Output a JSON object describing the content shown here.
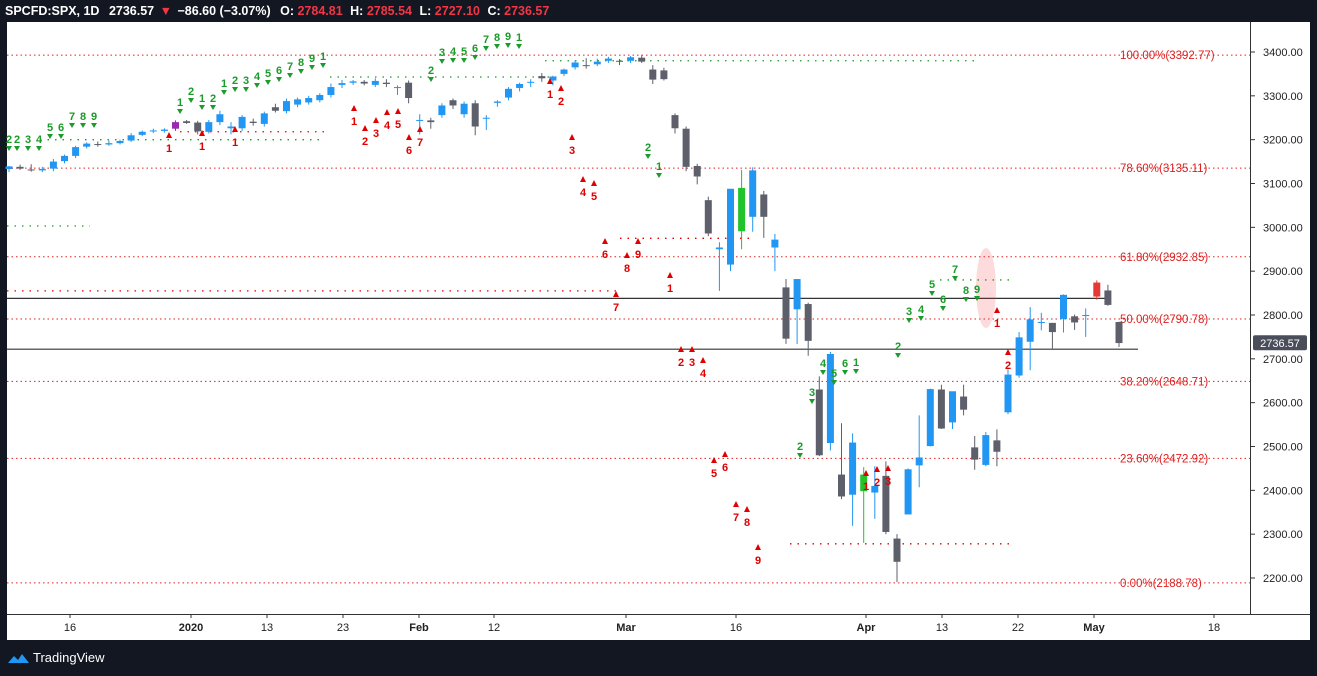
{
  "header": {
    "symbol": "SPCFD:SPX, 1D",
    "last": "2736.57",
    "arrow": "▼",
    "change": "−86.60 (−3.07%)",
    "o_label": "O:",
    "o_value": "2784.81",
    "h_label": "H:",
    "h_value": "2785.54",
    "l_label": "L:",
    "l_value": "2727.10",
    "c_label": "C:",
    "c_value": "2736.57"
  },
  "brand": {
    "name": "TradingView"
  },
  "price_tag": "2736.57",
  "colors": {
    "background": "#ffffff",
    "frame": "#131722",
    "up_candle": "#2196f3",
    "down_candle": "#5d606b",
    "green_candle": "#22c32b",
    "red_candle": "#e53935",
    "purple_candle": "#9c27b0",
    "td_green": "#1b9b2a",
    "td_red": "#e00000",
    "fib_line": "#e02020",
    "horizontal_line": "#333333",
    "loss_red": "#f23645"
  },
  "chart_data": {
    "type": "candlestick",
    "y_axis": {
      "ticks": [
        "3400.00",
        "3300.00",
        "3200.00",
        "3100.00",
        "3000.00",
        "2900.00",
        "2800.00",
        "2700.00",
        "2600.00",
        "2500.00",
        "2400.00",
        "2300.00",
        "2200.00"
      ],
      "range": [
        2155,
        3470
      ],
      "side": "right"
    },
    "x_axis": {
      "ticks": [
        "16",
        "2020",
        "13",
        "23",
        "Feb",
        "12",
        "Mar",
        "16",
        "Apr",
        "13",
        "22",
        "May",
        "18"
      ]
    },
    "fib_levels": [
      {
        "label": "100.00%(3392.77)",
        "value": 3392.77
      },
      {
        "label": "78.60%(3135.11)",
        "value": 3135.11
      },
      {
        "label": "61.80%(2932.85)",
        "value": 2932.85
      },
      {
        "label": "50.00%(2790.78)",
        "value": 2790.78
      },
      {
        "label": "38.20%(2648.71)",
        "value": 2648.71
      },
      {
        "label": "23.60%(2472.92)",
        "value": 2472.92
      },
      {
        "label": "0.00%(2188.78)",
        "value": 2188.78
      }
    ],
    "horizontal_lines": [
      2838,
      2722
    ],
    "candles": [
      {
        "o": 3133,
        "h": 3140,
        "l": 3126,
        "c": 3139,
        "k": "u"
      },
      {
        "o": 3138,
        "h": 3143,
        "l": 3131,
        "c": 3134,
        "k": "d"
      },
      {
        "o": 3132,
        "h": 3144,
        "l": 3127,
        "c": 3130,
        "k": "d"
      },
      {
        "o": 3130,
        "h": 3138,
        "l": 3126,
        "c": 3133,
        "k": "u"
      },
      {
        "o": 3134,
        "h": 3156,
        "l": 3128,
        "c": 3150,
        "k": "u"
      },
      {
        "o": 3151,
        "h": 3166,
        "l": 3146,
        "c": 3163,
        "k": "u"
      },
      {
        "o": 3163,
        "h": 3186,
        "l": 3158,
        "c": 3183,
        "k": "u"
      },
      {
        "o": 3184,
        "h": 3194,
        "l": 3180,
        "c": 3191,
        "k": "u"
      },
      {
        "o": 3190,
        "h": 3196,
        "l": 3184,
        "c": 3188,
        "k": "d"
      },
      {
        "o": 3189,
        "h": 3198,
        "l": 3186,
        "c": 3192,
        "k": "u"
      },
      {
        "o": 3192,
        "h": 3200,
        "l": 3189,
        "c": 3197,
        "k": "u"
      },
      {
        "o": 3198,
        "h": 3215,
        "l": 3195,
        "c": 3210,
        "k": "u"
      },
      {
        "o": 3211,
        "h": 3221,
        "l": 3208,
        "c": 3218,
        "k": "u"
      },
      {
        "o": 3219,
        "h": 3225,
        "l": 3215,
        "c": 3221,
        "k": "u"
      },
      {
        "o": 3220,
        "h": 3226,
        "l": 3216,
        "c": 3223,
        "k": "u"
      },
      {
        "o": 3225,
        "h": 3244,
        "l": 3220,
        "c": 3240,
        "k": "p"
      },
      {
        "o": 3242,
        "h": 3245,
        "l": 3236,
        "c": 3238,
        "k": "d"
      },
      {
        "o": 3239,
        "h": 3243,
        "l": 3212,
        "c": 3219,
        "k": "d"
      },
      {
        "o": 3218,
        "h": 3245,
        "l": 3214,
        "c": 3240,
        "k": "u"
      },
      {
        "o": 3240,
        "h": 3266,
        "l": 3233,
        "c": 3258,
        "k": "u"
      },
      {
        "o": 3230,
        "h": 3240,
        "l": 3212,
        "c": 3226,
        "k": "u"
      },
      {
        "o": 3226,
        "h": 3256,
        "l": 3220,
        "c": 3252,
        "k": "u"
      },
      {
        "o": 3238,
        "h": 3248,
        "l": 3232,
        "c": 3241,
        "k": "d"
      },
      {
        "o": 3236,
        "h": 3264,
        "l": 3230,
        "c": 3260,
        "k": "u"
      },
      {
        "o": 3274,
        "h": 3282,
        "l": 3262,
        "c": 3266,
        "k": "d"
      },
      {
        "o": 3265,
        "h": 3294,
        "l": 3260,
        "c": 3288,
        "k": "u"
      },
      {
        "o": 3280,
        "h": 3296,
        "l": 3274,
        "c": 3292,
        "k": "u"
      },
      {
        "o": 3285,
        "h": 3300,
        "l": 3280,
        "c": 3295,
        "k": "u"
      },
      {
        "o": 3290,
        "h": 3306,
        "l": 3285,
        "c": 3302,
        "k": "u"
      },
      {
        "o": 3302,
        "h": 3328,
        "l": 3296,
        "c": 3320,
        "k": "u"
      },
      {
        "o": 3325,
        "h": 3336,
        "l": 3318,
        "c": 3329,
        "k": "u"
      },
      {
        "o": 3330,
        "h": 3336,
        "l": 3325,
        "c": 3333,
        "k": "u"
      },
      {
        "o": 3332,
        "h": 3336,
        "l": 3324,
        "c": 3328,
        "k": "d"
      },
      {
        "o": 3334,
        "h": 3340,
        "l": 3320,
        "c": 3325,
        "k": "u"
      },
      {
        "o": 3330,
        "h": 3338,
        "l": 3320,
        "c": 3327,
        "k": "d"
      },
      {
        "o": 3320,
        "h": 3324,
        "l": 3302,
        "c": 3318,
        "k": "u"
      },
      {
        "o": 3330,
        "h": 3335,
        "l": 3283,
        "c": 3295,
        "k": "d"
      },
      {
        "o": 3245,
        "h": 3258,
        "l": 3212,
        "c": 3245,
        "k": "u"
      },
      {
        "o": 3244,
        "h": 3250,
        "l": 3225,
        "c": 3240,
        "k": "d"
      },
      {
        "o": 3256,
        "h": 3283,
        "l": 3250,
        "c": 3278,
        "k": "u"
      },
      {
        "o": 3290,
        "h": 3294,
        "l": 3270,
        "c": 3278,
        "k": "d"
      },
      {
        "o": 3282,
        "h": 3287,
        "l": 3250,
        "c": 3258,
        "k": "u"
      },
      {
        "o": 3283,
        "h": 3290,
        "l": 3210,
        "c": 3230,
        "k": "d"
      },
      {
        "o": 3250,
        "h": 3256,
        "l": 3222,
        "c": 3248,
        "k": "u"
      },
      {
        "o": 3284,
        "h": 3290,
        "l": 3275,
        "c": 3287,
        "k": "u"
      },
      {
        "o": 3296,
        "h": 3320,
        "l": 3290,
        "c": 3316,
        "k": "u"
      },
      {
        "o": 3318,
        "h": 3330,
        "l": 3310,
        "c": 3327,
        "k": "u"
      },
      {
        "o": 3330,
        "h": 3338,
        "l": 3320,
        "c": 3332,
        "k": "u"
      },
      {
        "o": 3345,
        "h": 3352,
        "l": 3332,
        "c": 3340,
        "k": "d"
      },
      {
        "o": 3335,
        "h": 3346,
        "l": 3324,
        "c": 3344,
        "k": "u"
      },
      {
        "o": 3350,
        "h": 3362,
        "l": 3345,
        "c": 3360,
        "k": "u"
      },
      {
        "o": 3365,
        "h": 3381,
        "l": 3360,
        "c": 3376,
        "k": "u"
      },
      {
        "o": 3370,
        "h": 3386,
        "l": 3362,
        "c": 3368,
        "k": "d"
      },
      {
        "o": 3372,
        "h": 3385,
        "l": 3368,
        "c": 3378,
        "k": "u"
      },
      {
        "o": 3380,
        "h": 3389,
        "l": 3375,
        "c": 3385,
        "k": "u"
      },
      {
        "o": 3379,
        "h": 3384,
        "l": 3370,
        "c": 3380,
        "k": "d"
      },
      {
        "o": 3380,
        "h": 3391,
        "l": 3375,
        "c": 3388,
        "k": "u"
      },
      {
        "o": 3387,
        "h": 3393,
        "l": 3375,
        "c": 3378,
        "k": "d"
      },
      {
        "o": 3360,
        "h": 3370,
        "l": 3327,
        "c": 3337,
        "k": "d"
      },
      {
        "o": 3358,
        "h": 3364,
        "l": 3335,
        "c": 3338,
        "k": "d"
      },
      {
        "o": 3256,
        "h": 3260,
        "l": 3214,
        "c": 3226,
        "k": "d"
      },
      {
        "o": 3225,
        "h": 3230,
        "l": 3128,
        "c": 3138,
        "k": "d"
      },
      {
        "o": 3140,
        "h": 3145,
        "l": 3098,
        "c": 3116,
        "k": "d"
      },
      {
        "o": 3062,
        "h": 3070,
        "l": 2980,
        "c": 2986,
        "k": "d"
      },
      {
        "o": 2950,
        "h": 2966,
        "l": 2855,
        "c": 2954,
        "k": "u"
      },
      {
        "o": 2915,
        "h": 3085,
        "l": 2900,
        "c": 3088,
        "k": "u"
      },
      {
        "o": 3090,
        "h": 3131,
        "l": 2950,
        "c": 2991,
        "k": "g"
      },
      {
        "o": 3024,
        "h": 3137,
        "l": 2990,
        "c": 3130,
        "k": "u"
      },
      {
        "o": 3075,
        "h": 3083,
        "l": 2976,
        "c": 3024,
        "k": "d"
      },
      {
        "o": 2954,
        "h": 2985,
        "l": 2900,
        "c": 2972,
        "k": "u"
      },
      {
        "o": 2863,
        "h": 2882,
        "l": 2734,
        "c": 2746,
        "k": "d"
      },
      {
        "o": 2813,
        "h": 2882,
        "l": 2734,
        "c": 2882,
        "k": "u"
      },
      {
        "o": 2825,
        "h": 2828,
        "l": 2707,
        "c": 2741,
        "k": "d"
      },
      {
        "o": 2630,
        "h": 2660,
        "l": 2478,
        "c": 2480,
        "k": "d"
      },
      {
        "o": 2508,
        "h": 2716,
        "l": 2491,
        "c": 2711,
        "k": "u"
      },
      {
        "o": 2436,
        "h": 2553,
        "l": 2380,
        "c": 2386,
        "k": "d"
      },
      {
        "o": 2390,
        "h": 2530,
        "l": 2319,
        "c": 2509,
        "k": "u"
      },
      {
        "o": 2436,
        "h": 2453,
        "l": 2280,
        "c": 2398,
        "k": "g"
      },
      {
        "o": 2395,
        "h": 2455,
        "l": 2335,
        "c": 2410,
        "k": "u"
      },
      {
        "o": 2433,
        "h": 2466,
        "l": 2300,
        "c": 2305,
        "k": "d"
      },
      {
        "o": 2290,
        "h": 2300,
        "l": 2191,
        "c": 2237,
        "k": "d"
      },
      {
        "o": 2345,
        "h": 2450,
        "l": 2345,
        "c": 2448,
        "k": "u"
      },
      {
        "o": 2457,
        "h": 2571,
        "l": 2407,
        "c": 2475,
        "k": "u"
      },
      {
        "o": 2501,
        "h": 2632,
        "l": 2500,
        "c": 2631,
        "k": "u"
      },
      {
        "o": 2630,
        "h": 2641,
        "l": 2540,
        "c": 2541,
        "k": "d"
      },
      {
        "o": 2555,
        "h": 2615,
        "l": 2540,
        "c": 2626,
        "k": "u"
      },
      {
        "o": 2614,
        "h": 2641,
        "l": 2571,
        "c": 2584,
        "k": "d"
      },
      {
        "o": 2498,
        "h": 2524,
        "l": 2447,
        "c": 2470,
        "k": "d"
      },
      {
        "o": 2458,
        "h": 2533,
        "l": 2455,
        "c": 2526,
        "k": "u"
      },
      {
        "o": 2514,
        "h": 2539,
        "l": 2455,
        "c": 2488,
        "k": "d"
      },
      {
        "o": 2578,
        "h": 2676,
        "l": 2574,
        "c": 2664,
        "k": "u"
      },
      {
        "o": 2662,
        "h": 2761,
        "l": 2657,
        "c": 2749,
        "k": "u"
      },
      {
        "o": 2739,
        "h": 2818,
        "l": 2674,
        "c": 2790,
        "k": "u"
      },
      {
        "o": 2784,
        "h": 2805,
        "l": 2765,
        "c": 2783,
        "k": "u"
      },
      {
        "o": 2782,
        "h": 2782,
        "l": 2721,
        "c": 2761,
        "k": "d"
      },
      {
        "o": 2791,
        "h": 2847,
        "l": 2760,
        "c": 2846,
        "k": "u"
      },
      {
        "o": 2797,
        "h": 2801,
        "l": 2766,
        "c": 2783,
        "k": "d"
      },
      {
        "o": 2800,
        "h": 2815,
        "l": 2750,
        "c": 2799,
        "k": "u"
      },
      {
        "o": 2874,
        "h": 2879,
        "l": 2835,
        "c": 2842,
        "k": "r"
      },
      {
        "o": 2856,
        "h": 2869,
        "l": 2821,
        "c": 2823,
        "k": "d"
      },
      {
        "o": 2784,
        "h": 2785,
        "l": 2727,
        "c": 2736,
        "k": "d"
      }
    ]
  }
}
